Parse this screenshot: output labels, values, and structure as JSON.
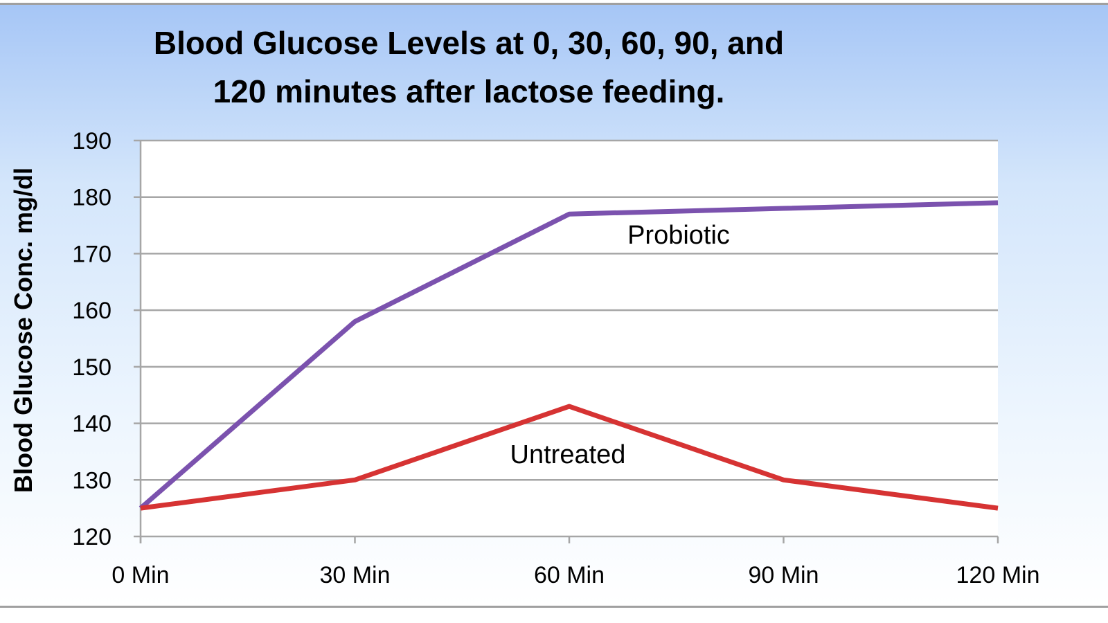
{
  "chart_data": {
    "type": "line",
    "title_lines": [
      "Blood Glucose Levels at 0, 30, 60, 90, and",
      "120 minutes after lactose feeding."
    ],
    "xlabel": "",
    "ylabel": "Blood Glucose Conc. mg/dl",
    "categories": [
      "0 Min",
      "30 Min",
      "60 Min",
      "90 Min",
      "120 Min"
    ],
    "ylim": [
      120,
      190
    ],
    "yticks": [
      120,
      130,
      140,
      150,
      160,
      170,
      180,
      190
    ],
    "grid": true,
    "legend": "inline labels",
    "series": [
      {
        "name": "Probiotic",
        "color": "#7b52ae",
        "values": [
          125,
          158,
          177,
          178,
          179
        ]
      },
      {
        "name": "Untreated",
        "color": "#d63333",
        "values": [
          125,
          130,
          143,
          130,
          125
        ]
      }
    ]
  }
}
